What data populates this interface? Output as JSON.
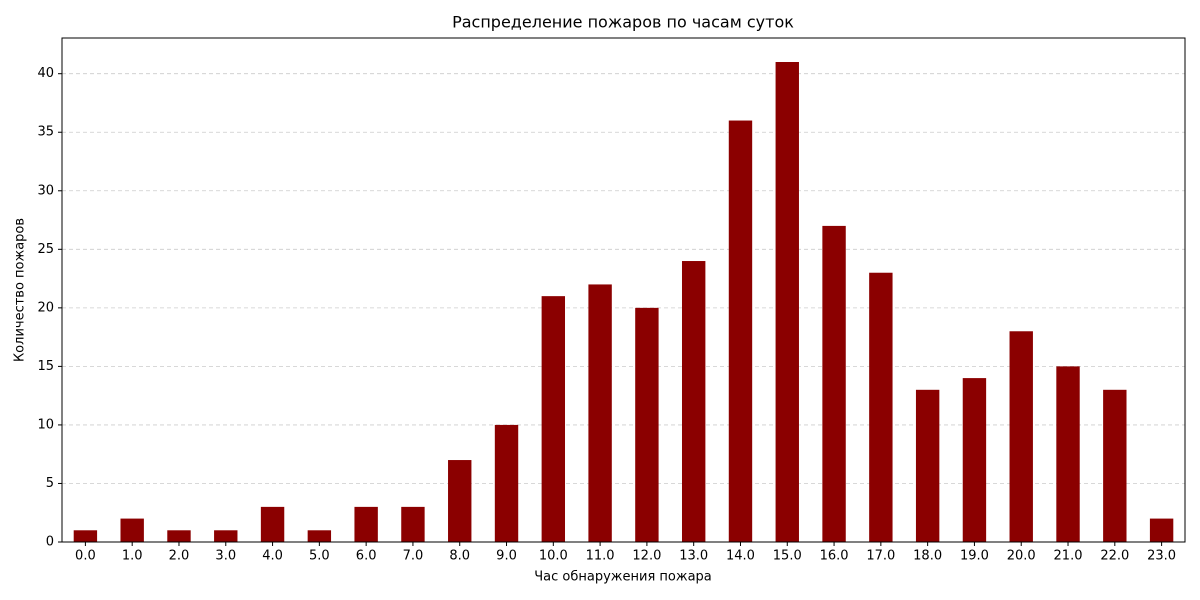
{
  "chart_data": {
    "type": "bar",
    "title": "Распределение пожаров по часам суток",
    "x_label": "Час обнаружения пожара",
    "y_label": "Количество пожаров",
    "categories": [
      "0.0",
      "1.0",
      "2.0",
      "3.0",
      "4.0",
      "5.0",
      "6.0",
      "7.0",
      "8.0",
      "9.0",
      "10.0",
      "11.0",
      "12.0",
      "13.0",
      "14.0",
      "15.0",
      "16.0",
      "17.0",
      "18.0",
      "19.0",
      "20.0",
      "21.0",
      "22.0",
      "23.0"
    ],
    "values": [
      1,
      2,
      1,
      1,
      3,
      1,
      3,
      3,
      7,
      10,
      21,
      22,
      20,
      24,
      36,
      41,
      27,
      23,
      13,
      14,
      18,
      15,
      13,
      2
    ],
    "color": "#8b0000",
    "ylim": [
      0,
      43.05
    ],
    "yticks": [
      0,
      5,
      10,
      15,
      20,
      25,
      30,
      35,
      40
    ],
    "grid": true
  }
}
